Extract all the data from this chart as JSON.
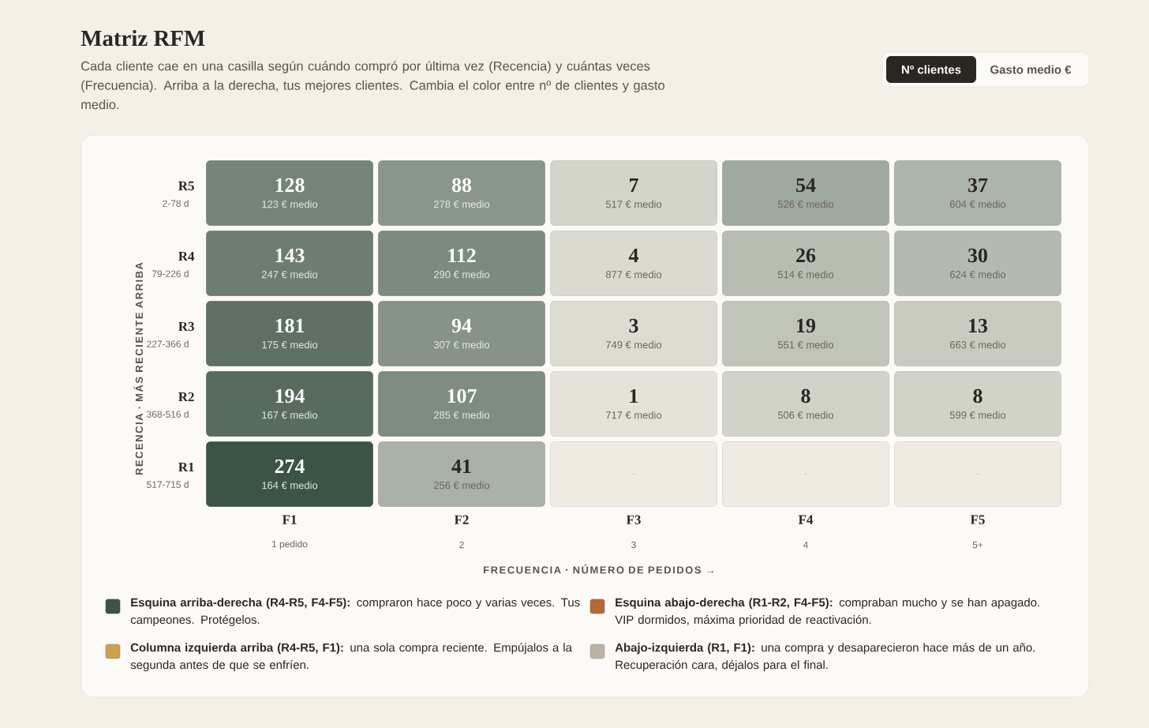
{
  "chart_data": {
    "type": "heatmap",
    "title": "Matriz RFM",
    "subtitle": "Cada cliente cae en una casilla según cuándo compró por última vez (Recencia) y cuántas veces (Frecuencia). Arriba a la derecha, tus mejores clientes. Cambia el color entre nº de clientes y gasto medio.",
    "xlabel": "FRECUENCIA · NÚMERO DE PEDIDOS →",
    "ylabel": "RECENCIA · MÁS RECIENTE ARRIBA",
    "categories": [
      "F1",
      "F2",
      "F3",
      "F4",
      "F5"
    ],
    "y_categories": [
      "R5",
      "R4",
      "R3",
      "R2",
      "R1"
    ],
    "y2_categories": [
      "2-78 d",
      "79-226 d",
      "227-366 d",
      "368-516 d",
      "517-715 d"
    ],
    "cells": [
      [
        128,
        88,
        7,
        54,
        37
      ],
      [
        143,
        112,
        4,
        26,
        30
      ],
      [
        181,
        94,
        3,
        19,
        13
      ],
      [
        194,
        107,
        1,
        8,
        8
      ],
      [
        274,
        41,
        null,
        null,
        null
      ]
    ],
    "cell_labels": [
      [
        "128",
        "88",
        "7",
        "54",
        "37"
      ],
      [
        "143",
        "112",
        "4",
        "26",
        "30"
      ],
      [
        "181",
        "94",
        "3",
        "19",
        "13"
      ],
      [
        "194",
        "107",
        "1",
        "8",
        "8"
      ],
      [
        "274",
        "41",
        "·",
        "·",
        "·"
      ]
    ],
    "annotations": [
      "1 pedido",
      "2",
      "3",
      "4",
      "5+",
      "Nº clientes",
      "Gasto medio €",
      "**Esquina arriba-derecha (R4-R5, F4-F5):** compraron hace poco y varias veces. Tus campeones. Protégelos.",
      "**Esquina abajo-derecha (R1-R2, F4-F5):** compraban mucho y se han apagado. VIP dormidos, máxima prioridad de reactivación.",
      "**Columna izquierda arriba (R4-R5, F1):** una sola compra reciente. Empújalos a la segunda antes de que se enfríen.",
      "**Abajo-izquierda (R1, F1):** una compra y desaparecieron hace más de un año. Recuperación cara, déjalos para el final.",
      "123 € medio",
      "278 € medio",
      "517 € medio",
      "526 € medio",
      "604 € medio",
      "247 € medio",
      "290 € medio",
      "877 € medio",
      "514 € medio",
      "624 € medio",
      "175 € medio",
      "307 € medio",
      "749 € medio",
      "551 € medio",
      "663 € medio",
      "167 € medio",
      "285 € medio",
      "717 € medio",
      "506 € medio",
      "599 € medio",
      "164 € medio",
      "256 € medio"
    ]
  }
}
